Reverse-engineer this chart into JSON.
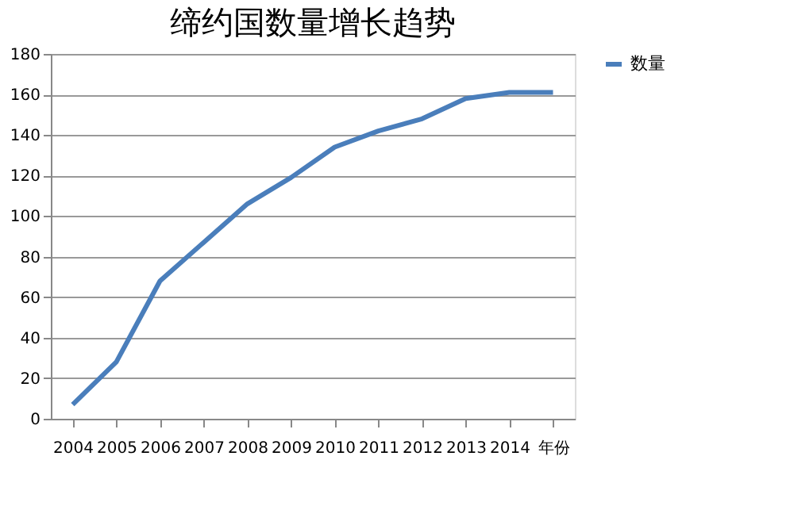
{
  "chart_data": {
    "type": "line",
    "title": "缔约国数量增长趋势",
    "categories": [
      "2004",
      "2005",
      "2006",
      "2007",
      "2008",
      "2009",
      "2010",
      "2011",
      "2012",
      "2013",
      "2014",
      "年份"
    ],
    "series": [
      {
        "name": "数量",
        "color": "#4a7ebb",
        "values": [
          7,
          28,
          68,
          87,
          106,
          119,
          134,
          142,
          148,
          158,
          161,
          161
        ]
      }
    ],
    "ylim": [
      0,
      180
    ],
    "yticks": [
      0,
      20,
      40,
      60,
      80,
      100,
      120,
      140,
      160,
      180
    ],
    "grid": "y",
    "legend": "right",
    "marker": "none",
    "line_style": "solid"
  }
}
